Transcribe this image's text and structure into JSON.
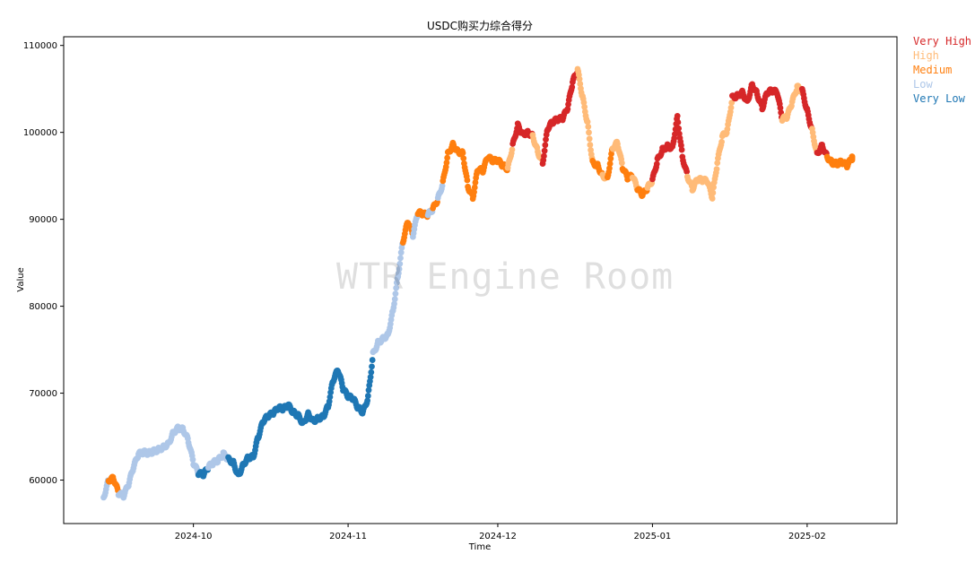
{
  "chart_data": {
    "type": "scatter",
    "title": "USDC购买力综合得分",
    "xlabel": "Time",
    "ylabel": "Value",
    "xlim": [
      "2024-09-05",
      "2025-02-19"
    ],
    "ylim": [
      55000,
      111000
    ],
    "x_ticks": [
      "2024-10",
      "2024-11",
      "2024-12",
      "2025-01",
      "2025-02"
    ],
    "y_ticks": [
      60000,
      70000,
      80000,
      90000,
      100000,
      110000
    ],
    "grid": false,
    "legend_position": "outside-right-top",
    "categories": [
      {
        "name": "Very High",
        "color": "#d62728"
      },
      {
        "name": "High",
        "color": "#ffbb78"
      },
      {
        "name": "Medium",
        "color": "#ff7f0e"
      },
      {
        "name": "Low",
        "color": "#aec7e8"
      },
      {
        "name": "Very Low",
        "color": "#1f77b4"
      }
    ],
    "points": [
      [
        "2024-09-13",
        58000,
        "Low"
      ],
      [
        "2024-09-14",
        60000,
        "Medium"
      ],
      [
        "2024-09-15",
        60200,
        "Medium"
      ],
      [
        "2024-09-16",
        58500,
        "Low"
      ],
      [
        "2024-09-17",
        58200,
        "Low"
      ],
      [
        "2024-09-18",
        59500,
        "Low"
      ],
      [
        "2024-09-19",
        61500,
        "Low"
      ],
      [
        "2024-09-20",
        63000,
        "Low"
      ],
      [
        "2024-09-21",
        63200,
        "Low"
      ],
      [
        "2024-09-22",
        63100,
        "Low"
      ],
      [
        "2024-09-23",
        63300,
        "Low"
      ],
      [
        "2024-09-24",
        63500,
        "Low"
      ],
      [
        "2024-09-25",
        63800,
        "Low"
      ],
      [
        "2024-09-26",
        64200,
        "Low"
      ],
      [
        "2024-09-27",
        65500,
        "Low"
      ],
      [
        "2024-09-28",
        66000,
        "Low"
      ],
      [
        "2024-09-29",
        65800,
        "Low"
      ],
      [
        "2024-09-30",
        64500,
        "Low"
      ],
      [
        "2024-10-01",
        62000,
        "Low"
      ],
      [
        "2024-10-02",
        60800,
        "Very Low"
      ],
      [
        "2024-10-03",
        60600,
        "Very Low"
      ],
      [
        "2024-10-04",
        61500,
        "Low"
      ],
      [
        "2024-10-05",
        62000,
        "Low"
      ],
      [
        "2024-10-06",
        62300,
        "Low"
      ],
      [
        "2024-10-07",
        63000,
        "Low"
      ],
      [
        "2024-10-08",
        62400,
        "Very Low"
      ],
      [
        "2024-10-09",
        62000,
        "Very Low"
      ],
      [
        "2024-10-10",
        60500,
        "Very Low"
      ],
      [
        "2024-10-11",
        61800,
        "Very Low"
      ],
      [
        "2024-10-12",
        62600,
        "Very Low"
      ],
      [
        "2024-10-13",
        62700,
        "Very Low"
      ],
      [
        "2024-10-14",
        65000,
        "Very Low"
      ],
      [
        "2024-10-15",
        66800,
        "Very Low"
      ],
      [
        "2024-10-16",
        67400,
        "Very Low"
      ],
      [
        "2024-10-17",
        67700,
        "Very Low"
      ],
      [
        "2024-10-18",
        68300,
        "Very Low"
      ],
      [
        "2024-10-19",
        68200,
        "Very Low"
      ],
      [
        "2024-10-20",
        68600,
        "Very Low"
      ],
      [
        "2024-10-21",
        67800,
        "Very Low"
      ],
      [
        "2024-10-22",
        67400,
        "Very Low"
      ],
      [
        "2024-10-23",
        66500,
        "Very Low"
      ],
      [
        "2024-10-24",
        67600,
        "Very Low"
      ],
      [
        "2024-10-25",
        66800,
        "Very Low"
      ],
      [
        "2024-10-26",
        67100,
        "Very Low"
      ],
      [
        "2024-10-27",
        67300,
        "Very Low"
      ],
      [
        "2024-10-28",
        68500,
        "Very Low"
      ],
      [
        "2024-10-29",
        71500,
        "Very Low"
      ],
      [
        "2024-10-30",
        72700,
        "Very Low"
      ],
      [
        "2024-10-31",
        70500,
        "Very Low"
      ],
      [
        "2024-11-01",
        69600,
        "Very Low"
      ],
      [
        "2024-11-02",
        69400,
        "Very Low"
      ],
      [
        "2024-11-03",
        68300,
        "Very Low"
      ],
      [
        "2024-11-04",
        67800,
        "Very Low"
      ],
      [
        "2024-11-05",
        69500,
        "Very Low"
      ],
      [
        "2024-11-06",
        74500,
        "Low"
      ],
      [
        "2024-11-07",
        75800,
        "Low"
      ],
      [
        "2024-11-08",
        76300,
        "Low"
      ],
      [
        "2024-11-09",
        76700,
        "Low"
      ],
      [
        "2024-11-10",
        79500,
        "Low"
      ],
      [
        "2024-11-11",
        83500,
        "Low"
      ],
      [
        "2024-11-12",
        87500,
        "Medium"
      ],
      [
        "2024-11-13",
        89800,
        "Medium"
      ],
      [
        "2024-11-14",
        88200,
        "Low"
      ],
      [
        "2024-11-15",
        90800,
        "Medium"
      ],
      [
        "2024-11-16",
        90600,
        "Medium"
      ],
      [
        "2024-11-17",
        90500,
        "Low"
      ],
      [
        "2024-11-18",
        91200,
        "Medium"
      ],
      [
        "2024-11-19",
        92300,
        "Low"
      ],
      [
        "2024-11-20",
        94200,
        "Medium"
      ],
      [
        "2024-11-21",
        97500,
        "Medium"
      ],
      [
        "2024-11-22",
        98600,
        "Medium"
      ],
      [
        "2024-11-23",
        97800,
        "Medium"
      ],
      [
        "2024-11-24",
        97600,
        "Medium"
      ],
      [
        "2024-11-25",
        93800,
        "Medium"
      ],
      [
        "2024-11-26",
        92500,
        "Medium"
      ],
      [
        "2024-11-27",
        95800,
        "Medium"
      ],
      [
        "2024-11-28",
        95600,
        "Medium"
      ],
      [
        "2024-11-29",
        97200,
        "Medium"
      ],
      [
        "2024-11-30",
        96700,
        "Medium"
      ],
      [
        "2024-12-01",
        96800,
        "Medium"
      ],
      [
        "2024-12-02",
        96200,
        "Medium"
      ],
      [
        "2024-12-03",
        95800,
        "High"
      ],
      [
        "2024-12-04",
        98500,
        "Very High"
      ],
      [
        "2024-12-05",
        100800,
        "Very High"
      ],
      [
        "2024-12-06",
        99800,
        "Very High"
      ],
      [
        "2024-12-07",
        100000,
        "Very High"
      ],
      [
        "2024-12-08",
        99600,
        "High"
      ],
      [
        "2024-12-09",
        97800,
        "High"
      ],
      [
        "2024-12-10",
        96500,
        "Very High"
      ],
      [
        "2024-12-11",
        100500,
        "Very High"
      ],
      [
        "2024-12-12",
        101200,
        "Very High"
      ],
      [
        "2024-12-13",
        101500,
        "Very High"
      ],
      [
        "2024-12-14",
        101600,
        "Very High"
      ],
      [
        "2024-12-15",
        102800,
        "Very High"
      ],
      [
        "2024-12-16",
        105800,
        "Very High"
      ],
      [
        "2024-12-17",
        107200,
        "High"
      ],
      [
        "2024-12-18",
        104000,
        "High"
      ],
      [
        "2024-12-19",
        101000,
        "High"
      ],
      [
        "2024-12-20",
        96500,
        "Medium"
      ],
      [
        "2024-12-21",
        96200,
        "Medium"
      ],
      [
        "2024-12-22",
        95000,
        "High"
      ],
      [
        "2024-12-23",
        94800,
        "Medium"
      ],
      [
        "2024-12-24",
        98200,
        "High"
      ],
      [
        "2024-12-25",
        98800,
        "High"
      ],
      [
        "2024-12-26",
        96000,
        "Medium"
      ],
      [
        "2024-12-27",
        94800,
        "Medium"
      ],
      [
        "2024-12-28",
        95000,
        "High"
      ],
      [
        "2024-12-29",
        93500,
        "Medium"
      ],
      [
        "2024-12-30",
        92800,
        "Medium"
      ],
      [
        "2024-12-31",
        93600,
        "High"
      ],
      [
        "2025-01-01",
        94500,
        "Very High"
      ],
      [
        "2025-01-02",
        96800,
        "Very High"
      ],
      [
        "2025-01-03",
        98000,
        "Very High"
      ],
      [
        "2025-01-04",
        98400,
        "Very High"
      ],
      [
        "2025-01-05",
        98200,
        "Very High"
      ],
      [
        "2025-01-06",
        101800,
        "Very High"
      ],
      [
        "2025-01-07",
        97200,
        "Very High"
      ],
      [
        "2025-01-08",
        95000,
        "High"
      ],
      [
        "2025-01-09",
        93500,
        "High"
      ],
      [
        "2025-01-10",
        94600,
        "High"
      ],
      [
        "2025-01-11",
        94500,
        "High"
      ],
      [
        "2025-01-12",
        94400,
        "High"
      ],
      [
        "2025-01-13",
        92500,
        "High"
      ],
      [
        "2025-01-14",
        96500,
        "High"
      ],
      [
        "2025-01-15",
        99500,
        "High"
      ],
      [
        "2025-01-16",
        100200,
        "High"
      ],
      [
        "2025-01-17",
        104000,
        "Very High"
      ],
      [
        "2025-01-18",
        104200,
        "Very High"
      ],
      [
        "2025-01-19",
        104600,
        "Very High"
      ],
      [
        "2025-01-20",
        103500,
        "Very High"
      ],
      [
        "2025-01-21",
        105500,
        "Very High"
      ],
      [
        "2025-01-22",
        104400,
        "Very High"
      ],
      [
        "2025-01-23",
        102800,
        "Very High"
      ],
      [
        "2025-01-24",
        104600,
        "Very High"
      ],
      [
        "2025-01-25",
        104800,
        "Very High"
      ],
      [
        "2025-01-26",
        104600,
        "Very High"
      ],
      [
        "2025-01-27",
        101500,
        "High"
      ],
      [
        "2025-01-28",
        101800,
        "High"
      ],
      [
        "2025-01-29",
        103500,
        "High"
      ],
      [
        "2025-01-30",
        105200,
        "High"
      ],
      [
        "2025-01-31",
        104800,
        "Very High"
      ],
      [
        "2025-02-01",
        102500,
        "Very High"
      ],
      [
        "2025-02-02",
        100200,
        "High"
      ],
      [
        "2025-02-03",
        97500,
        "Very High"
      ],
      [
        "2025-02-04",
        98500,
        "Very High"
      ],
      [
        "2025-02-05",
        97200,
        "Medium"
      ],
      [
        "2025-02-06",
        96500,
        "Medium"
      ],
      [
        "2025-02-07",
        96400,
        "Medium"
      ],
      [
        "2025-02-08",
        96600,
        "Medium"
      ],
      [
        "2025-02-09",
        96200,
        "Medium"
      ],
      [
        "2025-02-10",
        97000,
        "Medium"
      ]
    ]
  },
  "watermark": "WTR Engine Room"
}
